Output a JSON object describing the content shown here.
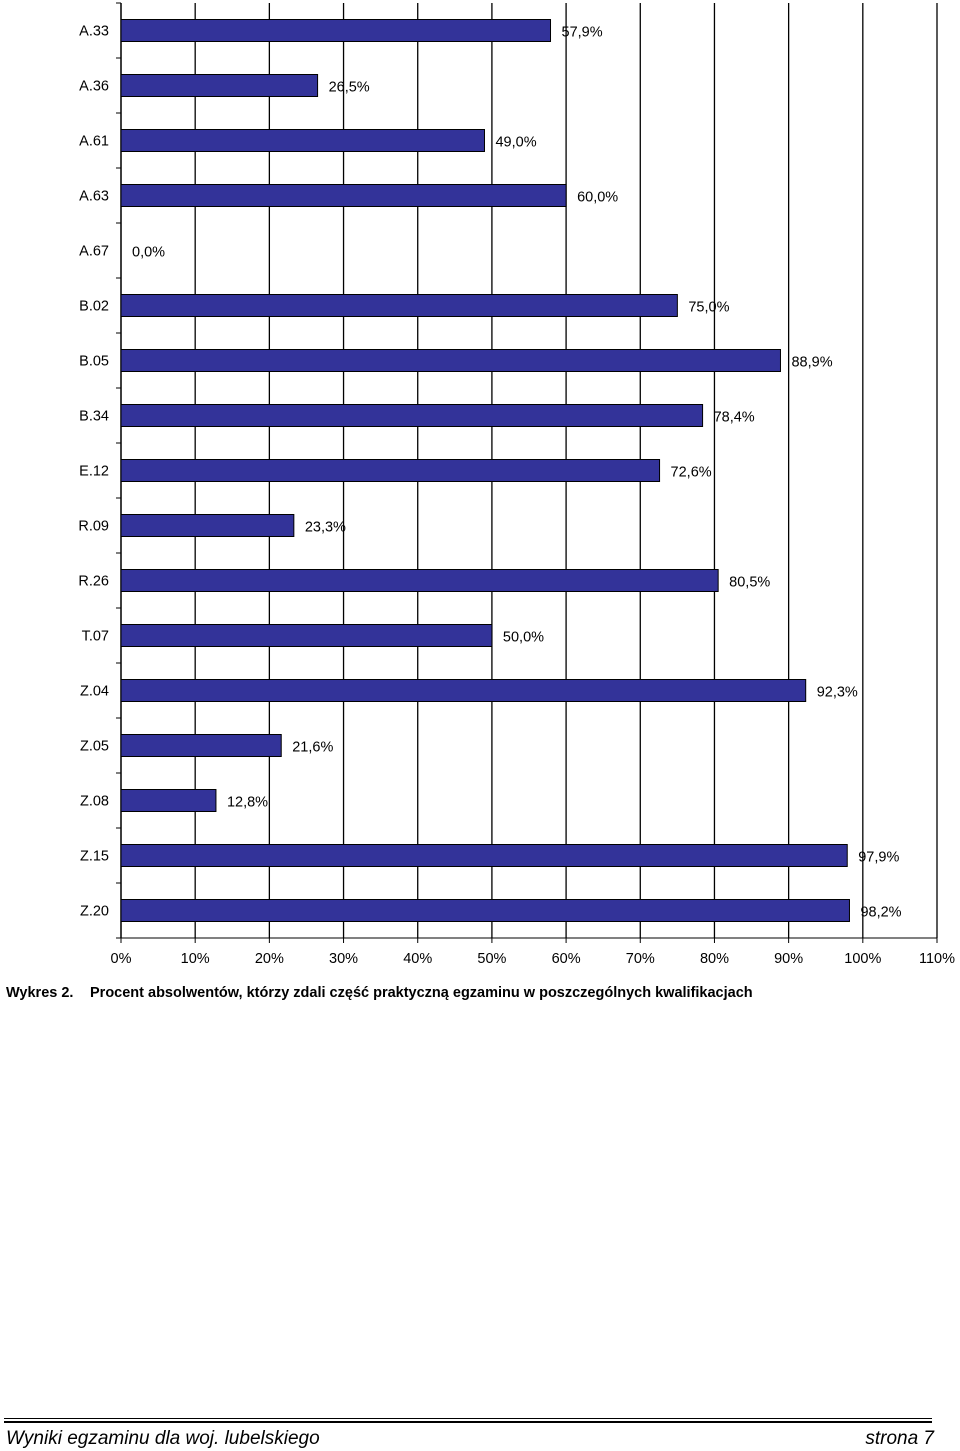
{
  "chart_data": {
    "type": "bar",
    "orientation": "horizontal",
    "categories": [
      "A.33",
      "A.36",
      "A.61",
      "A.63",
      "A.67",
      "B.02",
      "B.05",
      "B.34",
      "E.12",
      "R.09",
      "R.26",
      "T.07",
      "Z.04",
      "Z.05",
      "Z.08",
      "Z.15",
      "Z.20"
    ],
    "values": [
      57.9,
      26.5,
      49.0,
      60.0,
      0.0,
      75.0,
      88.9,
      78.4,
      72.6,
      23.3,
      80.5,
      50.0,
      92.3,
      21.6,
      12.8,
      97.9,
      98.2
    ],
    "value_labels": [
      "57,9%",
      "26,5%",
      "49,0%",
      "60,0%",
      "0,0%",
      "75,0%",
      "88,9%",
      "78,4%",
      "72,6%",
      "23,3%",
      "80,5%",
      "50,0%",
      "92,3%",
      "21,6%",
      "12,8%",
      "97,9%",
      "98,2%"
    ],
    "xlim": [
      0,
      110
    ],
    "xticks": [
      "0%",
      "10%",
      "20%",
      "30%",
      "40%",
      "50%",
      "60%",
      "70%",
      "80%",
      "90%",
      "100%",
      "110%"
    ],
    "grid": "vertical",
    "bar_color": "#333399",
    "grid_color": "#000000"
  },
  "caption": {
    "label": "Wykres 2.",
    "text": "Procent absolwentów, którzy zdali część praktyczną egzaminu w poszczególnych kwalifikacjach"
  },
  "footer": {
    "left": "Wyniki egzaminu dla woj. lubelskiego",
    "right": "strona 7"
  }
}
